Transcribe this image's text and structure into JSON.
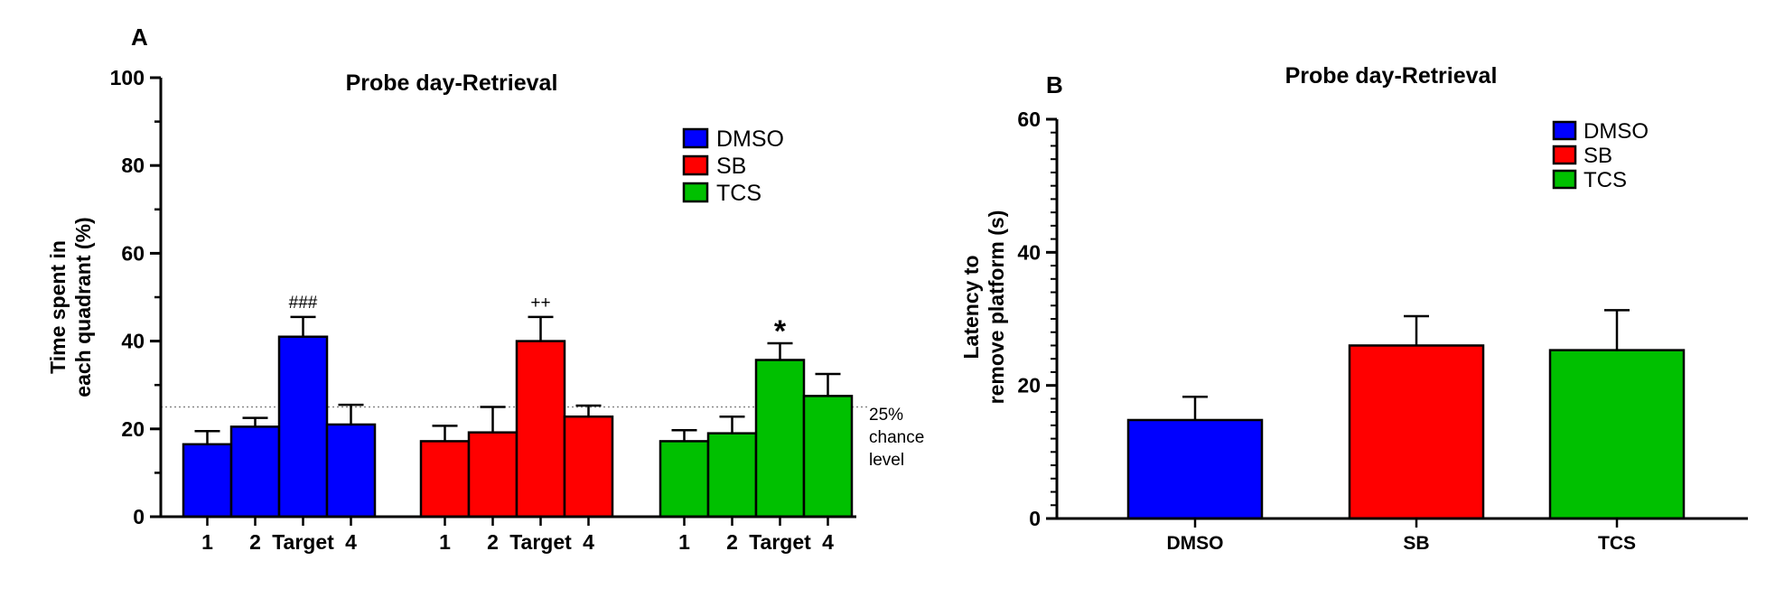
{
  "colors": {
    "DMSO": "#0000ff",
    "SB": "#ff0000",
    "TCS": "#00c000"
  },
  "chart_data": [
    {
      "panel": "A",
      "type": "bar",
      "title": "Probe day-Retrieval",
      "ylabel_line1": "Time spent in",
      "ylabel_line2": "each quadrant (%)",
      "xlabel": "",
      "ylim": [
        0,
        100
      ],
      "yticks": [
        0,
        20,
        40,
        60,
        80,
        100
      ],
      "groups": [
        {
          "name": "DMSO",
          "color_key": "DMSO",
          "categories": [
            "1",
            "2",
            "Target",
            "4"
          ],
          "values": [
            16.5,
            20.5,
            41,
            21
          ],
          "errors": [
            3,
            2,
            4.5,
            4.5
          ],
          "annotation": {
            "text": "###",
            "index": 2
          }
        },
        {
          "name": "SB",
          "color_key": "SB",
          "categories": [
            "1",
            "2",
            "Target",
            "4"
          ],
          "values": [
            17.2,
            19.2,
            40,
            22.8
          ],
          "errors": [
            3.5,
            5.8,
            5.5,
            2.5
          ],
          "annotation": {
            "text": "++",
            "index": 2
          }
        },
        {
          "name": "TCS",
          "color_key": "TCS",
          "categories": [
            "1",
            "2",
            "Target",
            "4"
          ],
          "values": [
            17.2,
            19,
            35.7,
            27.5
          ],
          "errors": [
            2.5,
            3.8,
            3.8,
            5
          ],
          "annotation": {
            "text": "*",
            "index": 2
          }
        }
      ],
      "reference_line": {
        "y": 25,
        "label_lines": [
          "25%",
          "chance",
          "level"
        ]
      },
      "legend": [
        "DMSO",
        "SB",
        "TCS"
      ],
      "legend_position": "top-right"
    },
    {
      "panel": "B",
      "type": "bar",
      "title": "Probe day-Retrieval",
      "ylabel_line1": "Latency to",
      "ylabel_line2": "remove platform (s)",
      "xlabel": "",
      "ylim": [
        0,
        60
      ],
      "yticks": [
        0,
        20,
        40,
        60
      ],
      "categories": [
        "DMSO",
        "SB",
        "TCS"
      ],
      "values": [
        14.8,
        26,
        25.3
      ],
      "errors": [
        3.5,
        4.4,
        6
      ],
      "legend": [
        "DMSO",
        "SB",
        "TCS"
      ],
      "legend_position": "top-right"
    }
  ]
}
